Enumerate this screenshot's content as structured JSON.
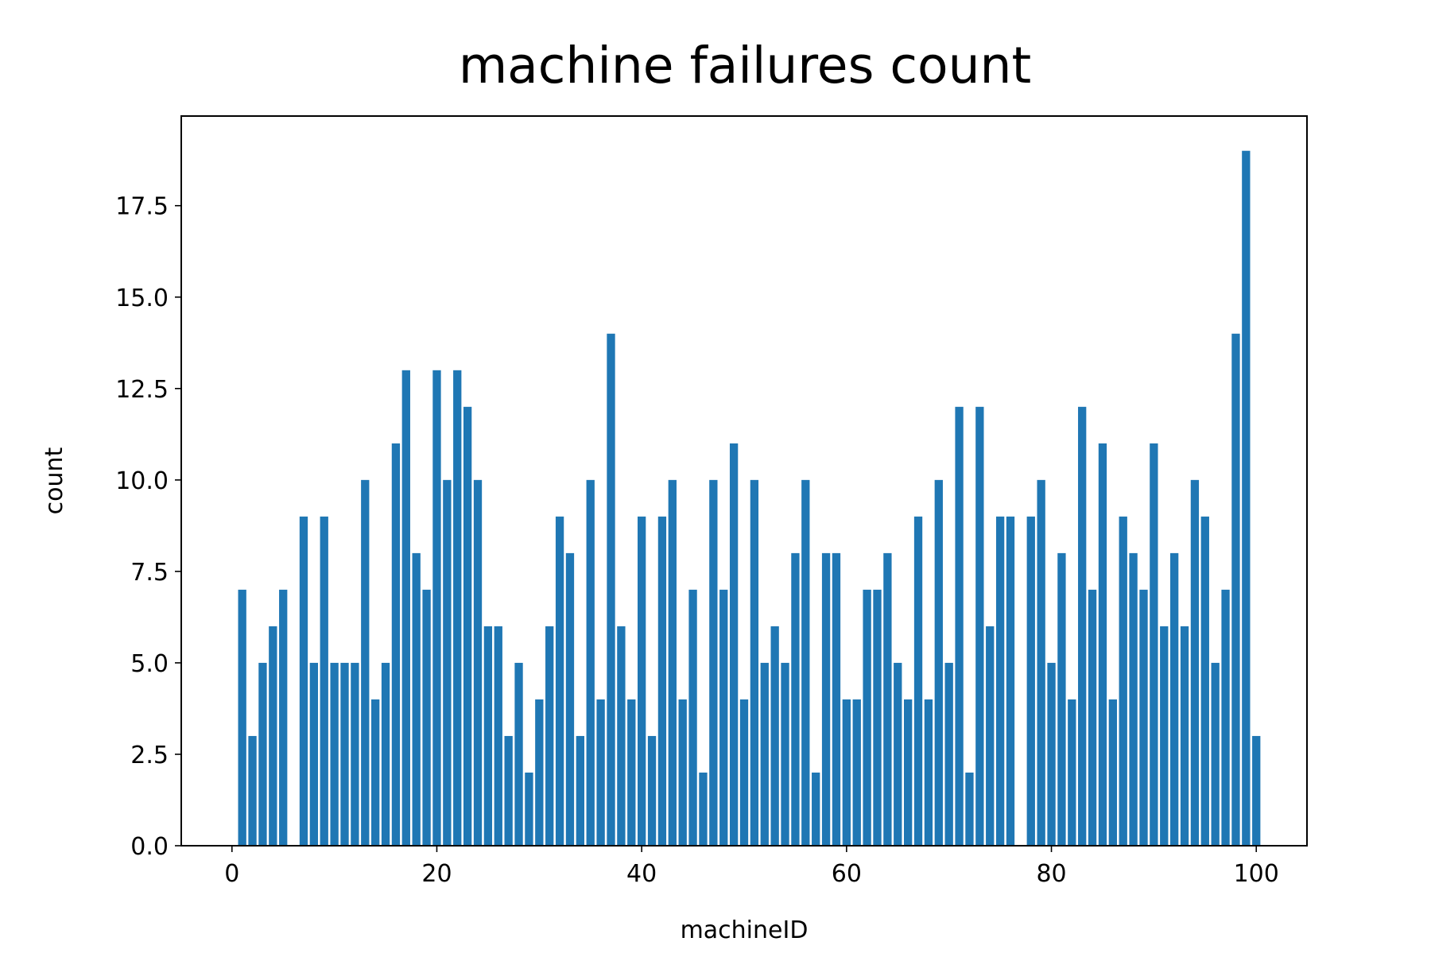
{
  "chart_data": {
    "type": "bar",
    "title": "machine failures count",
    "xlabel": "machineID",
    "ylabel": "count",
    "xlim": [
      -4.95,
      104.95
    ],
    "ylim": [
      0,
      19.95
    ],
    "x": [
      1,
      2,
      3,
      4,
      5,
      6,
      7,
      8,
      9,
      10,
      11,
      12,
      13,
      14,
      15,
      16,
      17,
      18,
      19,
      20,
      21,
      22,
      23,
      24,
      25,
      26,
      27,
      28,
      29,
      30,
      31,
      32,
      33,
      34,
      35,
      36,
      37,
      38,
      39,
      40,
      41,
      42,
      43,
      44,
      45,
      46,
      47,
      48,
      49,
      50,
      51,
      52,
      53,
      54,
      55,
      56,
      57,
      58,
      59,
      60,
      61,
      62,
      63,
      64,
      65,
      66,
      67,
      68,
      69,
      70,
      71,
      72,
      73,
      74,
      75,
      76,
      77,
      78,
      79,
      80,
      81,
      82,
      83,
      84,
      85,
      86,
      87,
      88,
      89,
      90,
      91,
      92,
      93,
      94,
      95,
      96,
      97,
      98,
      99,
      100
    ],
    "values": [
      7,
      3,
      5,
      6,
      7,
      0,
      9,
      5,
      9,
      5,
      5,
      5,
      10,
      4,
      5,
      11,
      13,
      8,
      7,
      13,
      10,
      13,
      12,
      10,
      6,
      6,
      3,
      5,
      2,
      4,
      6,
      9,
      8,
      3,
      10,
      4,
      14,
      6,
      4,
      9,
      3,
      9,
      10,
      4,
      7,
      2,
      10,
      7,
      11,
      4,
      10,
      5,
      6,
      5,
      8,
      10,
      2,
      8,
      8,
      4,
      4,
      7,
      7,
      8,
      5,
      4,
      9,
      4,
      10,
      5,
      12,
      2,
      12,
      6,
      9,
      9,
      0,
      9,
      10,
      5,
      8,
      4,
      12,
      7,
      11,
      4,
      9,
      8,
      7,
      11,
      6,
      8,
      6,
      10,
      9,
      5,
      7,
      14,
      19,
      3
    ],
    "bar_color": "#1f77b4",
    "xticks": [
      0,
      20,
      40,
      60,
      80,
      100
    ],
    "xtick_labels": [
      "0",
      "20",
      "40",
      "60",
      "80",
      "100"
    ],
    "yticks": [
      0,
      2.5,
      5,
      7.5,
      10,
      12.5,
      15,
      17.5
    ],
    "ytick_labels": [
      "0.0",
      "2.5",
      "5.0",
      "7.5",
      "10.0",
      "12.5",
      "15.0",
      "17.5"
    ],
    "grid": false,
    "legend": "none"
  }
}
